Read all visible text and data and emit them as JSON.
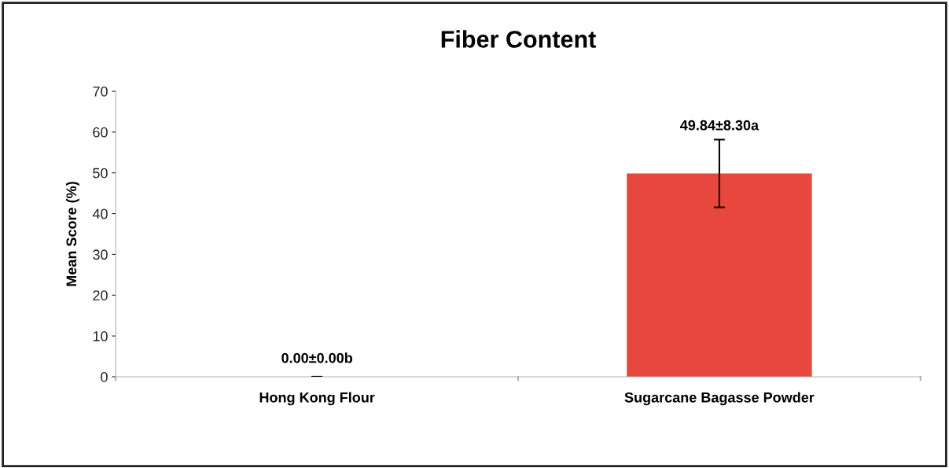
{
  "chart_data": {
    "type": "bar",
    "title": "Fiber Content",
    "ylabel": "Mean Score (%)",
    "categories": [
      "Hong Kong Flour",
      "Sugarcane Bagasse Powder"
    ],
    "values": [
      0.0,
      49.84
    ],
    "errors": [
      0.0,
      8.3
    ],
    "color": "#e8473d",
    "value_labels": [
      "0.00±0.00b",
      "49.84±8.30a"
    ],
    "ylim": [
      0,
      70
    ],
    "yticks": [
      0,
      10,
      20,
      30,
      40,
      50,
      60,
      70
    ],
    "grid": false
  }
}
